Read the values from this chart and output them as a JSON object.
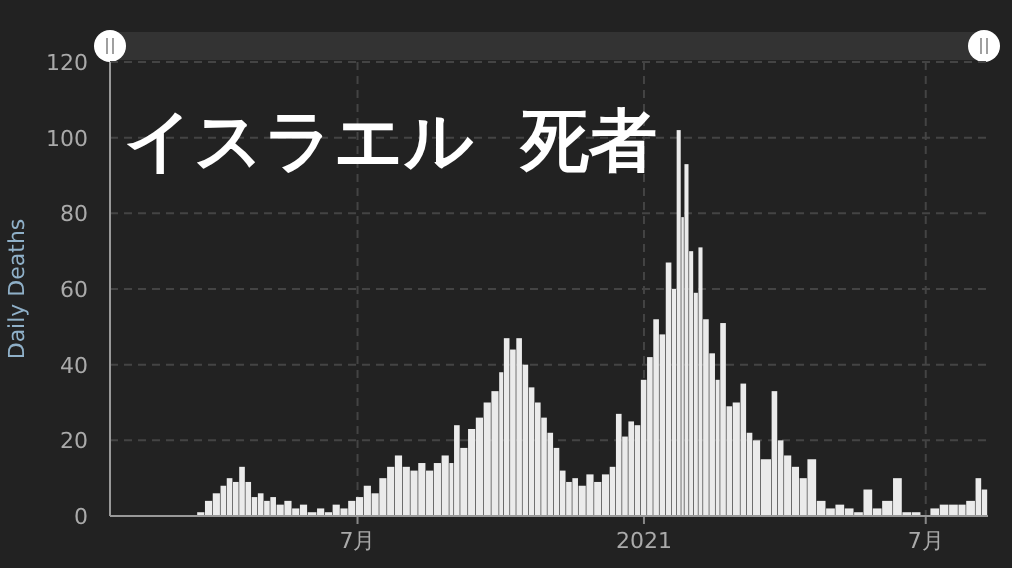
{
  "chart_data": {
    "type": "bar",
    "title": "イスラエル  死者",
    "ylabel": "Daily Deaths",
    "color": "#ebebeb",
    "grid": true,
    "xlim": [
      "2020-01-24",
      "2021-08-10"
    ],
    "ylim": [
      0,
      120
    ],
    "yticks": [
      0,
      20,
      40,
      60,
      80,
      100,
      120
    ],
    "xticks": [
      {
        "value": "2020-07-01",
        "label": "7月"
      },
      {
        "value": "2021-01-01",
        "label": "2021"
      },
      {
        "value": "2021-07-01",
        "label": "7月"
      }
    ],
    "x": [
      "2020-03-20",
      "2020-03-25",
      "2020-03-30",
      "2020-04-04",
      "2020-04-08",
      "2020-04-12",
      "2020-04-16",
      "2020-04-20",
      "2020-04-24",
      "2020-04-28",
      "2020-05-02",
      "2020-05-06",
      "2020-05-10",
      "2020-05-15",
      "2020-05-20",
      "2020-05-25",
      "2020-05-30",
      "2020-06-05",
      "2020-06-10",
      "2020-06-15",
      "2020-06-20",
      "2020-06-25",
      "2020-06-30",
      "2020-07-05",
      "2020-07-10",
      "2020-07-15",
      "2020-07-20",
      "2020-07-25",
      "2020-07-30",
      "2020-08-04",
      "2020-08-09",
      "2020-08-14",
      "2020-08-19",
      "2020-08-24",
      "2020-08-29",
      "2020-09-01",
      "2020-09-05",
      "2020-09-10",
      "2020-09-15",
      "2020-09-20",
      "2020-09-25",
      "2020-09-30",
      "2020-10-03",
      "2020-10-07",
      "2020-10-11",
      "2020-10-15",
      "2020-10-19",
      "2020-10-23",
      "2020-10-27",
      "2020-10-31",
      "2020-11-04",
      "2020-11-08",
      "2020-11-12",
      "2020-11-16",
      "2020-11-20",
      "2020-11-25",
      "2020-11-30",
      "2020-12-05",
      "2020-12-10",
      "2020-12-14",
      "2020-12-18",
      "2020-12-22",
      "2020-12-26",
      "2020-12-30",
      "2021-01-03",
      "2021-01-07",
      "2021-01-11",
      "2021-01-15",
      "2021-01-19",
      "2021-01-22",
      "2021-01-25",
      "2021-01-27",
      "2021-01-30",
      "2021-02-02",
      "2021-02-05",
      "2021-02-08",
      "2021-02-12",
      "2021-02-16",
      "2021-02-19",
      "2021-02-23",
      "2021-02-27",
      "2021-03-04",
      "2021-03-08",
      "2021-03-12",
      "2021-03-17",
      "2021-03-24",
      "2021-03-28",
      "2021-04-01",
      "2021-04-06",
      "2021-04-11",
      "2021-04-16",
      "2021-04-22",
      "2021-04-28",
      "2021-05-04",
      "2021-05-10",
      "2021-05-16",
      "2021-05-22",
      "2021-05-28",
      "2021-06-03",
      "2021-06-10",
      "2021-06-16",
      "2021-06-22",
      "2021-06-28",
      "2021-07-04",
      "2021-07-10",
      "2021-07-16",
      "2021-07-22",
      "2021-07-27",
      "2021-08-02",
      "2021-08-06"
    ],
    "values": [
      1,
      4,
      6,
      8,
      10,
      9,
      13,
      9,
      5,
      6,
      4,
      5,
      3,
      4,
      2,
      3,
      1,
      2,
      1,
      3,
      2,
      4,
      5,
      8,
      6,
      10,
      13,
      16,
      13,
      12,
      14,
      12,
      14,
      16,
      14,
      24,
      18,
      23,
      26,
      30,
      33,
      38,
      47,
      44,
      47,
      40,
      34,
      30,
      26,
      22,
      18,
      12,
      9,
      10,
      8,
      11,
      9,
      11,
      13,
      27,
      21,
      25,
      24,
      36,
      42,
      52,
      48,
      67,
      60,
      102,
      79,
      93,
      70,
      59,
      71,
      52,
      43,
      36,
      51,
      29,
      30,
      35,
      22,
      20,
      15,
      33,
      20,
      16,
      13,
      10,
      15,
      4,
      2,
      3,
      2,
      1,
      7,
      2,
      4,
      10,
      1,
      1,
      0,
      2,
      3,
      3,
      3,
      4,
      10,
      7
    ]
  }
}
